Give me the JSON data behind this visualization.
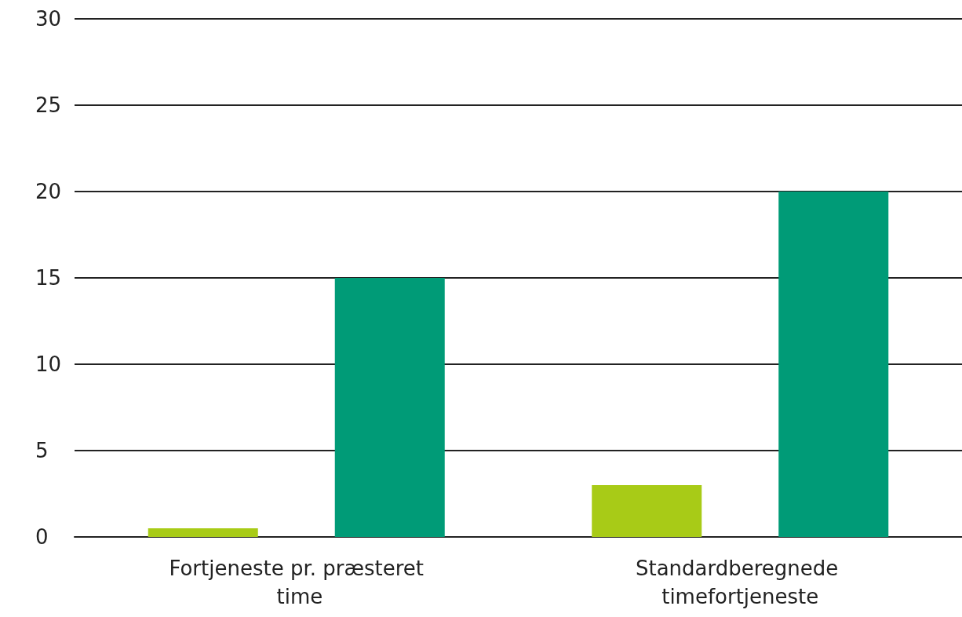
{
  "chart_data": {
    "type": "bar",
    "categories": [
      "Fortjeneste pr. præsteret time",
      "Standardberegnede timefortjeneste"
    ],
    "series": [
      {
        "color": "#a8cb17",
        "values": [
          0.5,
          3
        ]
      },
      {
        "color": "#009b77",
        "values": [
          15,
          20
        ]
      }
    ],
    "ylim": [
      0,
      30
    ],
    "yticks": [
      0,
      5,
      10,
      15,
      20,
      25,
      30
    ],
    "grid": "y"
  }
}
